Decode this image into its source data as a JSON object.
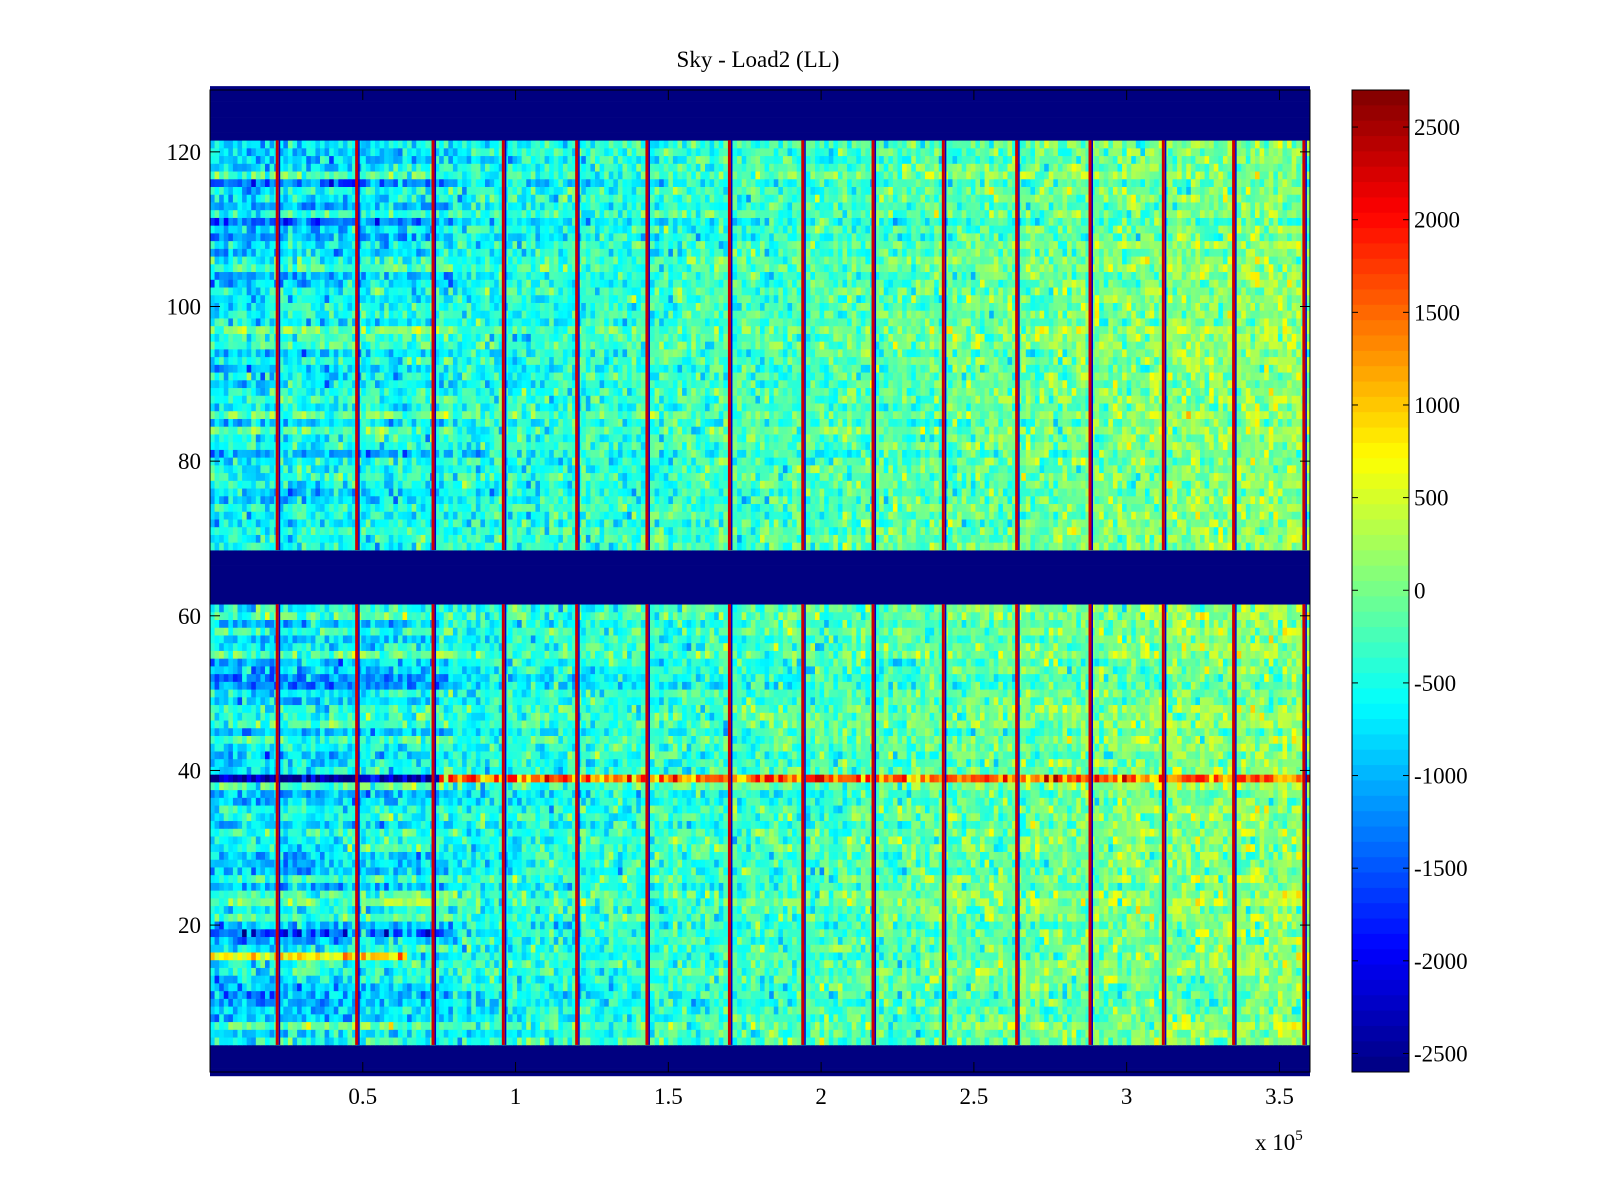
{
  "chart_data": {
    "type": "heatmap",
    "title": "Sky - Load2 (LL)",
    "xlabel": "",
    "ylabel": "",
    "x_multiplier_label": "x 10",
    "x_multiplier_exponent": "5",
    "xlim": [
      0,
      3.6
    ],
    "ylim": [
      1,
      128
    ],
    "grid": false,
    "xticks": [
      0.5,
      1,
      1.5,
      2,
      2.5,
      3,
      3.5
    ],
    "xtick_labels": [
      "0.5",
      "1",
      "1.5",
      "2",
      "2.5",
      "3",
      "3.5"
    ],
    "yticks": [
      20,
      40,
      60,
      80,
      100,
      120
    ],
    "ytick_labels": [
      "20",
      "40",
      "60",
      "80",
      "100",
      "120"
    ],
    "colorbar": {
      "range": [
        -2600,
        2700
      ],
      "ticks": [
        2500,
        2000,
        1500,
        1000,
        500,
        0,
        -500,
        -1000,
        -1500,
        -2000,
        -2500
      ],
      "tick_labels": [
        "2500",
        "2000",
        "1500",
        "1000",
        "500",
        "0",
        "-500",
        "-1000",
        "-1500",
        "-2000",
        "-2500"
      ],
      "colormap": "jet"
    },
    "masked_row_bands": [
      [
        1,
        4
      ],
      [
        62,
        68
      ],
      [
        122,
        128
      ]
    ],
    "masked_value": -2600,
    "spike_columns_x": [
      0.22,
      0.48,
      0.73,
      0.96,
      1.2,
      1.43,
      1.7,
      1.94,
      2.17,
      2.4,
      2.64,
      2.88,
      3.12,
      3.35,
      3.58
    ],
    "anomalous_rows": [
      {
        "y": 39,
        "x_range": [
          0,
          0.75
        ],
        "value": -2500
      },
      {
        "y": 39,
        "x_range": [
          0.75,
          3.6
        ],
        "value": 1500
      },
      {
        "y": 16,
        "x_range": [
          0,
          0.65
        ],
        "value": 900
      },
      {
        "y": 19,
        "x_range": [
          0,
          0.8
        ],
        "value": -1500
      }
    ],
    "background_mean": {
      "x_start": -700,
      "x_end": 150
    }
  }
}
